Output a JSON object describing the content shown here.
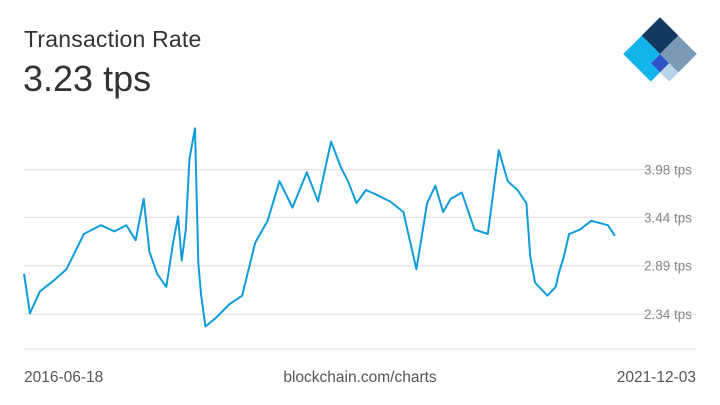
{
  "header": {
    "title": "Transaction Rate",
    "current_value": "3.23 tps"
  },
  "footer": {
    "start_date": "2016-06-18",
    "source": "blockchain.com/charts",
    "end_date": "2021-12-03"
  },
  "logo": {
    "icon": "blockchain-logo-icon",
    "colors": [
      "#123962",
      "#7a9bb5",
      "#2e54c8",
      "#b8d3e6",
      "#13b4ec"
    ]
  },
  "chart_data": {
    "type": "line",
    "series_color": "#109cdb",
    "grid": true,
    "gridline_color": "#dddddd",
    "y_ticks": [
      3.98,
      3.44,
      2.89,
      2.34
    ],
    "y_tick_labels": [
      "3.98 tps",
      "3.44 tps",
      "2.89 tps",
      "2.34 tps"
    ],
    "x_labels": [
      "2016-06-18",
      "2021-12-03"
    ],
    "ylim": [
      1.8,
      4.5
    ],
    "xlim": [
      "2016-06-18",
      "2021-12-03"
    ],
    "x": [
      "2016-06-18",
      "2016-07-08",
      "2016-08-11",
      "2016-09-26",
      "2016-11-08",
      "2017-01-06",
      "2017-03-04",
      "2017-04-19",
      "2017-05-29",
      "2017-06-30",
      "2017-07-27",
      "2017-08-15",
      "2017-09-10",
      "2017-10-11",
      "2017-11-03",
      "2017-11-20",
      "2017-12-02",
      "2017-12-16",
      "2017-12-28",
      "2018-01-16",
      "2018-01-27",
      "2018-02-06",
      "2018-02-20",
      "2018-03-28",
      "2018-05-11",
      "2018-06-24",
      "2018-08-07",
      "2018-09-18",
      "2018-10-28",
      "2018-12-11",
      "2019-01-28",
      "2019-03-07",
      "2019-04-20",
      "2019-05-24",
      "2019-06-16",
      "2019-07-15",
      "2019-08-16",
      "2019-09-18",
      "2019-11-05",
      "2019-12-20",
      "2020-02-02",
      "2020-03-09",
      "2020-04-06",
      "2020-05-02",
      "2020-05-28",
      "2020-07-04",
      "2020-08-16",
      "2020-09-30",
      "2020-11-06",
      "2020-12-06",
      "2021-01-08",
      "2021-02-07",
      "2021-02-20",
      "2021-03-08",
      "2021-04-19",
      "2021-05-17",
      "2021-05-27",
      "2021-06-14",
      "2021-07-01",
      "2021-08-07",
      "2021-09-14",
      "2021-11-09",
      "2021-12-03"
    ],
    "values": [
      2.8,
      2.35,
      2.6,
      2.72,
      2.85,
      3.25,
      3.35,
      3.28,
      3.35,
      3.18,
      3.65,
      3.05,
      2.8,
      2.65,
      3.15,
      3.45,
      2.95,
      3.3,
      4.1,
      4.45,
      2.92,
      2.55,
      2.2,
      2.3,
      2.45,
      2.55,
      3.15,
      3.4,
      3.85,
      3.55,
      3.95,
      3.62,
      4.3,
      4.0,
      3.85,
      3.6,
      3.75,
      3.7,
      3.62,
      3.5,
      2.85,
      3.6,
      3.8,
      3.5,
      3.65,
      3.72,
      3.3,
      3.25,
      4.2,
      3.85,
      3.75,
      3.6,
      3.0,
      2.7,
      2.55,
      2.65,
      2.8,
      3.0,
      3.25,
      3.3,
      3.4,
      3.35,
      3.23
    ]
  }
}
